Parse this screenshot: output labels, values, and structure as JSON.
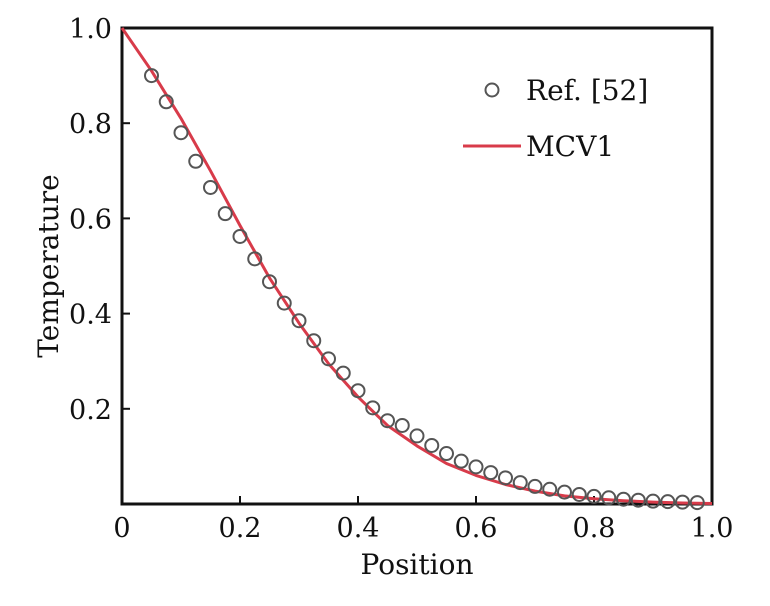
{
  "chart_data": {
    "type": "line",
    "xlabel": "Position",
    "ylabel": "Temperature",
    "xlim": [
      0,
      1.0
    ],
    "ylim": [
      0,
      1.0
    ],
    "x_ticks": [
      0,
      0.2,
      0.4,
      0.6,
      0.8,
      1.0
    ],
    "x_tick_labels": [
      "0",
      "0.2",
      "0.4",
      "0.6",
      "0.8",
      "1.0"
    ],
    "y_ticks": [
      0.2,
      0.4,
      0.6,
      0.8,
      1.0
    ],
    "y_tick_labels": [
      "0.2",
      "0.4",
      "0.6",
      "0.8",
      "1.0"
    ],
    "grid": false,
    "legend_position": "top-right",
    "series": [
      {
        "name": "Ref. [52]",
        "type": "scatter",
        "marker": "open-circle",
        "color": "#555555",
        "x": [
          0.05,
          0.075,
          0.1,
          0.125,
          0.15,
          0.175,
          0.2,
          0.225,
          0.25,
          0.275,
          0.3,
          0.325,
          0.35,
          0.375,
          0.4,
          0.425,
          0.45,
          0.475,
          0.5,
          0.525,
          0.55,
          0.575,
          0.6,
          0.625,
          0.65,
          0.675,
          0.7,
          0.725,
          0.75,
          0.775,
          0.8,
          0.825,
          0.85,
          0.875,
          0.9,
          0.925,
          0.95,
          0.975
        ],
        "y": [
          0.9,
          0.845,
          0.78,
          0.72,
          0.665,
          0.61,
          0.562,
          0.515,
          0.467,
          0.422,
          0.385,
          0.343,
          0.305,
          0.275,
          0.238,
          0.202,
          0.175,
          0.165,
          0.143,
          0.123,
          0.106,
          0.09,
          0.078,
          0.066,
          0.055,
          0.045,
          0.037,
          0.031,
          0.025,
          0.02,
          0.016,
          0.013,
          0.01,
          0.008,
          0.006,
          0.005,
          0.004,
          0.003
        ]
      },
      {
        "name": "MCV1",
        "type": "line",
        "color": "#d83b4a",
        "x": [
          0,
          0.05,
          0.1,
          0.15,
          0.2,
          0.25,
          0.3,
          0.35,
          0.4,
          0.45,
          0.5,
          0.55,
          0.6,
          0.65,
          0.7,
          0.75,
          0.8,
          0.85,
          0.9,
          0.95,
          1.0
        ],
        "y": [
          1.0,
          0.91,
          0.81,
          0.7,
          0.585,
          0.475,
          0.38,
          0.295,
          0.225,
          0.165,
          0.122,
          0.085,
          0.06,
          0.041,
          0.027,
          0.017,
          0.011,
          0.007,
          0.004,
          0.002,
          0.001
        ]
      }
    ]
  }
}
